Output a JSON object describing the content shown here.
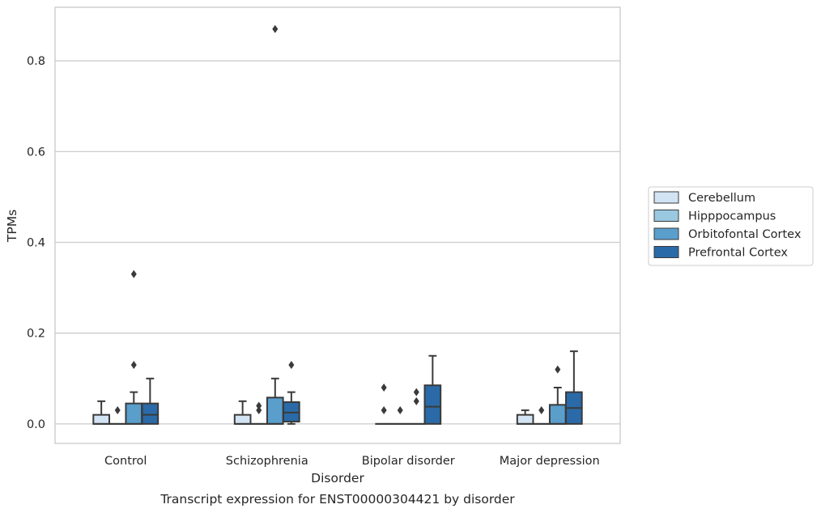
{
  "chart_data": {
    "type": "boxplot",
    "title": "",
    "caption": "Transcript expression for ENST00000304421 by disorder",
    "xlabel": "Disorder",
    "ylabel": "TPMs",
    "ylim": [
      -0.043,
      0.918
    ],
    "yticks": [
      0.0,
      0.2,
      0.4,
      0.6,
      0.8
    ],
    "ytick_labels": [
      "0.0",
      "0.2",
      "0.4",
      "0.6",
      "0.8"
    ],
    "grid": "horizontal",
    "legend_position": "right",
    "categories": [
      "Control",
      "Schizophrenia",
      "Bipolar disorder",
      "Major depression"
    ],
    "series": [
      {
        "name": "Cerebellum",
        "color": "#d2e3f3",
        "boxes": [
          {
            "q1": 0.0,
            "median": 0.0,
            "q3": 0.02,
            "whislo": 0.0,
            "whishi": 0.05,
            "fliers": []
          },
          {
            "q1": 0.0,
            "median": 0.0,
            "q3": 0.02,
            "whislo": 0.0,
            "whishi": 0.05,
            "fliers": []
          },
          {
            "q1": 0.0,
            "median": 0.0,
            "q3": 0.0,
            "whislo": 0.0,
            "whishi": 0.0,
            "fliers": [
              0.03,
              0.08
            ]
          },
          {
            "q1": 0.0,
            "median": 0.0,
            "q3": 0.02,
            "whislo": 0.0,
            "whishi": 0.03,
            "fliers": []
          }
        ]
      },
      {
        "name": "Hipppocampus",
        "color": "#9ac8e0",
        "boxes": [
          {
            "q1": 0.0,
            "median": 0.0,
            "q3": 0.0,
            "whislo": 0.0,
            "whishi": 0.0,
            "fliers": [
              0.03
            ]
          },
          {
            "q1": 0.0,
            "median": 0.0,
            "q3": 0.0,
            "whislo": 0.0,
            "whishi": 0.0,
            "fliers": [
              0.03,
              0.04
            ]
          },
          {
            "q1": 0.0,
            "median": 0.0,
            "q3": 0.0,
            "whislo": 0.0,
            "whishi": 0.0,
            "fliers": [
              0.03
            ]
          },
          {
            "q1": 0.0,
            "median": 0.0,
            "q3": 0.0,
            "whislo": 0.0,
            "whishi": 0.0,
            "fliers": [
              0.03
            ]
          }
        ]
      },
      {
        "name": "Orbitofontal Cortex",
        "color": "#5a9ecc",
        "boxes": [
          {
            "q1": 0.0,
            "median": 0.0,
            "q3": 0.045,
            "whislo": 0.0,
            "whishi": 0.07,
            "fliers": [
              0.13,
              0.33
            ]
          },
          {
            "q1": 0.0,
            "median": 0.0,
            "q3": 0.058,
            "whislo": 0.0,
            "whishi": 0.1,
            "fliers": [
              0.87
            ]
          },
          {
            "q1": 0.0,
            "median": 0.0,
            "q3": 0.0,
            "whislo": 0.0,
            "whishi": 0.0,
            "fliers": [
              0.05,
              0.07
            ]
          },
          {
            "q1": 0.0,
            "median": 0.0,
            "q3": 0.042,
            "whislo": 0.0,
            "whishi": 0.08,
            "fliers": [
              0.12
            ]
          }
        ]
      },
      {
        "name": "Prefrontal Cortex",
        "color": "#2a6aa8",
        "boxes": [
          {
            "q1": 0.0,
            "median": 0.02,
            "q3": 0.045,
            "whislo": 0.0,
            "whishi": 0.1,
            "fliers": []
          },
          {
            "q1": 0.005,
            "median": 0.025,
            "q3": 0.048,
            "whislo": 0.0,
            "whishi": 0.07,
            "fliers": [
              0.13
            ]
          },
          {
            "q1": 0.0,
            "median": 0.038,
            "q3": 0.085,
            "whislo": 0.0,
            "whishi": 0.15,
            "fliers": []
          },
          {
            "q1": 0.0,
            "median": 0.035,
            "q3": 0.07,
            "whislo": 0.0,
            "whishi": 0.16,
            "fliers": []
          }
        ]
      }
    ]
  }
}
